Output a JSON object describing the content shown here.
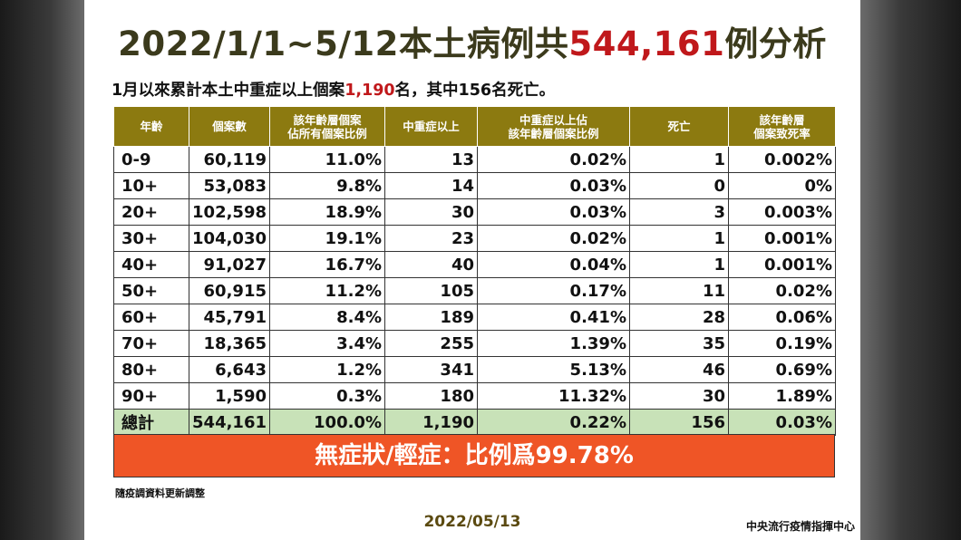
{
  "title": {
    "prefix": "2022/1/1~5/12本土病例共",
    "highlight": "544,161",
    "suffix": "例分析"
  },
  "subtitle": {
    "prefix": "1月以來累計本土中重症以上個案",
    "highlight": "1,190",
    "suffix": "名，其中156名死亡。"
  },
  "table": {
    "headers": [
      "年齡",
      "個案數",
      "該年齡層個案\n佔所有個案比例",
      "中重症以上",
      "中重症以上佔\n該年齡層個案比例",
      "死亡",
      "該年齡層\n個案致死率"
    ],
    "rows": [
      [
        "0-9",
        "60,119",
        "11.0%",
        "13",
        "0.02%",
        "1",
        "0.002%"
      ],
      [
        "10+",
        "53,083",
        "9.8%",
        "14",
        "0.03%",
        "0",
        "0%"
      ],
      [
        "20+",
        "102,598",
        "18.9%",
        "30",
        "0.03%",
        "3",
        "0.003%"
      ],
      [
        "30+",
        "104,030",
        "19.1%",
        "23",
        "0.02%",
        "1",
        "0.001%"
      ],
      [
        "40+",
        "91,027",
        "16.7%",
        "40",
        "0.04%",
        "1",
        "0.001%"
      ],
      [
        "50+",
        "60,915",
        "11.2%",
        "105",
        "0.17%",
        "11",
        "0.02%"
      ],
      [
        "60+",
        "45,791",
        "8.4%",
        "189",
        "0.41%",
        "28",
        "0.06%"
      ],
      [
        "70+",
        "18,365",
        "3.4%",
        "255",
        "1.39%",
        "35",
        "0.19%"
      ],
      [
        "80+",
        "6,643",
        "1.2%",
        "341",
        "5.13%",
        "46",
        "0.69%"
      ],
      [
        "90+",
        "1,590",
        "0.3%",
        "180",
        "11.32%",
        "30",
        "1.89%"
      ]
    ],
    "total": [
      "總計",
      "544,161",
      "100.0%",
      "1,190",
      "0.22%",
      "156",
      "0.03%"
    ]
  },
  "banner": "無症狀/輕症：比例爲99.78%",
  "note": "隨疫調資料更新調整",
  "date": "2022/05/13",
  "org": "中央流行疫情指揮中心",
  "colors": {
    "header_bg": "#8c7a10",
    "total_row_bg": "#c8e2b8",
    "banner_bg": "#ef5526",
    "highlight_red": "#c0181b"
  }
}
